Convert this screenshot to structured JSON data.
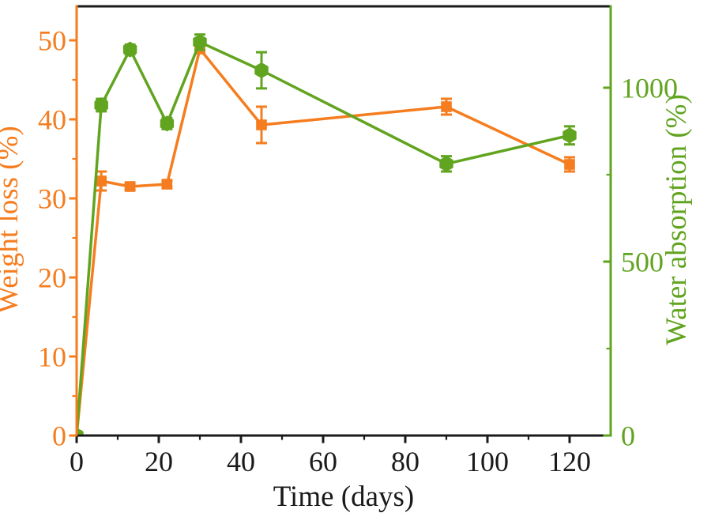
{
  "figure": {
    "background_color": "#FFFFFF",
    "frame_color": "#1A1A1A"
  },
  "chart_data": {
    "type": "line",
    "title": "",
    "xlabel": "Time (days)",
    "ylabel_left": "Weight loss (%)",
    "ylabel_right": "Water absorption (%)",
    "grid": false,
    "legend": "none",
    "x_days": [
      0,
      6,
      13,
      22,
      30,
      45,
      90,
      120
    ],
    "series": [
      {
        "name": "Weight loss",
        "axis": "left",
        "color": "#F57D1F",
        "marker": "square",
        "values": [
          0,
          32.2,
          31.5,
          31.8,
          48.9,
          39.3,
          41.6,
          34.3
        ],
        "errors": [
          0,
          1.2,
          0.4,
          0.4,
          0.5,
          2.3,
          1.0,
          0.9
        ]
      },
      {
        "name": "Water absorption",
        "axis": "right",
        "color": "#61A41F",
        "marker": "hexagon",
        "values": [
          0,
          950,
          1110,
          897,
          1131,
          1050,
          781,
          863
        ],
        "errors": [
          0,
          18,
          14,
          16,
          22,
          52,
          22,
          26
        ]
      }
    ],
    "axes": {
      "x": {
        "min": 0,
        "max": 130,
        "major_ticks": [
          0,
          20,
          40,
          60,
          80,
          100,
          120
        ],
        "minor_ticks": [
          10,
          30,
          50,
          70,
          90,
          110
        ],
        "color": "#1A1A1A"
      },
      "left": {
        "min": 0,
        "max": 54.3,
        "major_ticks": [
          0,
          10,
          20,
          30,
          40,
          50
        ],
        "minor_ticks": [
          5,
          15,
          25,
          35,
          45
        ],
        "color": "#F57D1F"
      },
      "right": {
        "min": 0,
        "max": 1234,
        "major_ticks": [
          0,
          500,
          1000
        ],
        "minor_ticks": [
          250,
          750
        ],
        "color": "#61A41F"
      }
    }
  }
}
